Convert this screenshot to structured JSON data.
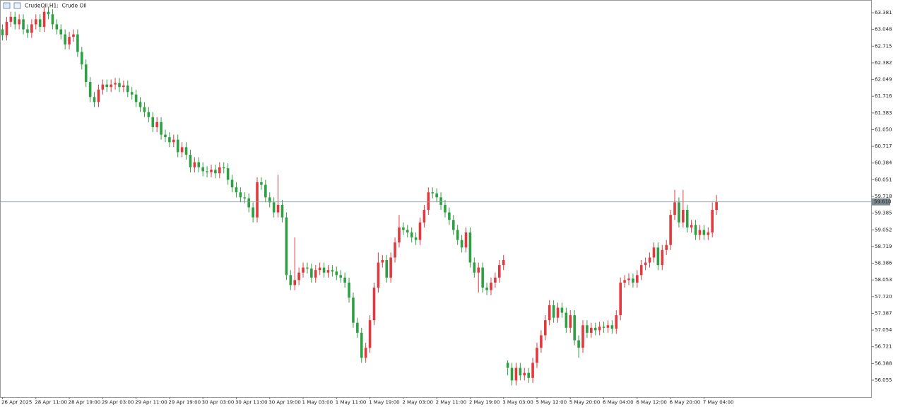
{
  "chart_data": {
    "type": "candlestick",
    "title": "CrudeOil,H1:  Crude Oil",
    "up_color": "#e0393e",
    "down_color": "#2ea043",
    "grid": false,
    "ylim": [
      55.717,
      63.635
    ],
    "yticks": [
      63.381,
      63.048,
      62.715,
      62.382,
      62.049,
      61.716,
      61.383,
      {
        "value": 61.05,
        "label": "61.050"
      },
      60.717,
      60.384,
      60.051,
      59.718,
      59.385,
      59.052,
      58.719,
      58.386,
      58.053,
      {
        "value": 57.72,
        "label": "57.720"
      },
      57.387,
      57.054,
      56.721,
      56.388,
      56.055
    ],
    "last_price": {
      "value": 59.61,
      "label": "59.610"
    },
    "categories": [
      "26 Apr 2025",
      null,
      null,
      null,
      null,
      null,
      null,
      null,
      "28 Apr 11:00",
      null,
      null,
      null,
      null,
      null,
      null,
      null,
      "28 Apr 19:00",
      null,
      null,
      null,
      null,
      null,
      null,
      null,
      "29 Apr 03:00",
      null,
      null,
      null,
      null,
      null,
      null,
      null,
      "29 Apr 11:00",
      null,
      null,
      null,
      null,
      null,
      null,
      null,
      "29 Apr 19:00",
      null,
      null,
      null,
      null,
      null,
      null,
      null,
      "30 Apr 03:00",
      null,
      null,
      null,
      null,
      null,
      null,
      null,
      "30 Apr 11:00",
      null,
      null,
      null,
      null,
      null,
      null,
      null,
      "30 Apr 19:00",
      null,
      null,
      null,
      null,
      null,
      null,
      null,
      "1 May 03:00",
      null,
      null,
      null,
      null,
      null,
      null,
      null,
      "1 May 11:00",
      null,
      null,
      null,
      null,
      null,
      null,
      null,
      "1 May 19:00",
      null,
      null,
      null,
      null,
      null,
      null,
      null,
      "2 May 03:00",
      null,
      null,
      null,
      null,
      null,
      null,
      null,
      "2 May 11:00",
      null,
      null,
      null,
      null,
      null,
      null,
      null,
      "2 May 19:00",
      null,
      null,
      null,
      null,
      null,
      null,
      null,
      "3 May 03:00",
      null,
      null,
      null,
      null,
      null,
      null,
      null,
      "5 May 12:00",
      null,
      null,
      null,
      null,
      null,
      null,
      null,
      "5 May 20:00",
      null,
      null,
      null,
      null,
      null,
      null,
      null,
      "6 May 04:00",
      null,
      null,
      null,
      null,
      null,
      null,
      null,
      "6 May 12:00",
      null,
      null,
      null,
      null,
      null,
      null,
      null,
      "6 May 20:00",
      null,
      null,
      null,
      null,
      null,
      null,
      null,
      "7 May 04:00",
      null,
      null,
      null
    ],
    "open": [
      63.05,
      62.93,
      63.2,
      63.3,
      63.15,
      63.25,
      63.05,
      62.98,
      63.15,
      63.25,
      63.1,
      63.4,
      63.35,
      63.15,
      63.05,
      62.95,
      62.75,
      62.9,
      62.95,
      62.6,
      62.35,
      62.0,
      61.7,
      61.6,
      61.85,
      61.95,
      61.9,
      61.95,
      61.98,
      61.9,
      61.93,
      61.8,
      61.75,
      61.6,
      61.5,
      61.4,
      61.3,
      61.1,
      61.2,
      60.95,
      60.9,
      60.8,
      60.85,
      60.6,
      60.7,
      60.55,
      60.3,
      60.4,
      60.3,
      60.22,
      60.2,
      60.25,
      60.18,
      60.3,
      60.28,
      60.05,
      59.9,
      59.8,
      59.7,
      59.68,
      59.5,
      59.3,
      60.0,
      59.95,
      59.7,
      59.6,
      59.4,
      59.55,
      59.3,
      58.15,
      57.95,
      58.05,
      58.2,
      58.3,
      58.28,
      58.1,
      58.25,
      58.3,
      58.2,
      58.25,
      58.22,
      58.15,
      58.1,
      58.0,
      57.7,
      57.2,
      57.0,
      56.5,
      56.7,
      57.25,
      57.9,
      58.4,
      58.45,
      58.1,
      58.5,
      58.8,
      59.1,
      59.05,
      59.0,
      58.9,
      58.85,
      59.2,
      59.45,
      59.8,
      59.78,
      59.7,
      59.55,
      59.4,
      59.25,
      59.05,
      58.85,
      58.7,
      59.0,
      58.4,
      58.2,
      58.3,
      57.9,
      57.85,
      58.0,
      58.1,
      58.35,
      56.4,
      56.3,
      56.05,
      56.3,
      56.15,
      56.2,
      56.1,
      56.4,
      56.7,
      56.95,
      57.25,
      57.55,
      57.3,
      57.5,
      57.4,
      57.1,
      57.35,
      56.85,
      56.7,
      57.15,
      57.0,
      57.1,
      57.05,
      57.12,
      57.1,
      57.15,
      57.08,
      57.35,
      58.0,
      58.05,
      58.08,
      58.0,
      58.15,
      58.35,
      58.4,
      58.5,
      58.7,
      58.35,
      58.65,
      58.75,
      59.35,
      59.6,
      59.2,
      59.45,
      59.1,
      59.15,
      58.95,
      59.05,
      58.95,
      59.0,
      59.45
    ],
    "high": [
      63.15,
      63.3,
      63.4,
      63.4,
      63.35,
      63.35,
      63.15,
      63.25,
      63.35,
      63.35,
      63.5,
      63.5,
      63.45,
      63.25,
      63.15,
      63.05,
      63.0,
      63.05,
      63.05,
      62.7,
      62.45,
      62.1,
      61.8,
      61.95,
      62.05,
      62.05,
      62.05,
      62.08,
      62.08,
      62.03,
      62.03,
      61.9,
      61.85,
      61.7,
      61.6,
      61.5,
      61.4,
      61.3,
      61.3,
      61.05,
      61.0,
      60.95,
      60.95,
      60.8,
      60.8,
      60.65,
      60.5,
      60.5,
      60.4,
      60.32,
      60.35,
      60.35,
      60.4,
      60.4,
      60.38,
      60.15,
      60.0,
      59.9,
      59.8,
      59.78,
      59.6,
      60.1,
      60.1,
      60.05,
      59.8,
      59.7,
      60.15,
      59.65,
      59.4,
      58.25,
      58.9,
      58.3,
      58.4,
      58.4,
      58.38,
      58.35,
      58.4,
      58.4,
      58.35,
      58.35,
      58.32,
      58.25,
      58.2,
      58.1,
      57.8,
      57.3,
      57.1,
      56.8,
      57.35,
      58.0,
      58.6,
      58.55,
      58.55,
      58.6,
      58.9,
      59.35,
      59.2,
      59.15,
      59.1,
      59.0,
      59.3,
      59.55,
      59.9,
      59.9,
      59.88,
      59.8,
      59.65,
      59.5,
      59.35,
      59.15,
      58.95,
      59.1,
      59.1,
      58.5,
      58.4,
      58.4,
      58.0,
      58.1,
      58.2,
      58.45,
      58.55,
      56.45,
      56.4,
      56.4,
      56.4,
      56.3,
      56.3,
      56.5,
      56.8,
      57.05,
      57.35,
      57.65,
      57.65,
      57.6,
      57.6,
      57.5,
      57.45,
      57.45,
      56.95,
      57.25,
      57.25,
      57.2,
      57.2,
      57.22,
      57.22,
      57.25,
      57.25,
      57.45,
      58.1,
      58.15,
      58.18,
      58.18,
      58.25,
      58.45,
      58.5,
      58.6,
      58.8,
      58.8,
      58.75,
      58.85,
      59.45,
      59.85,
      59.7,
      59.85,
      59.55,
      59.25,
      59.25,
      59.15,
      59.15,
      59.1,
      59.6,
      59.75
    ],
    "low": [
      62.83,
      62.83,
      63.1,
      63.05,
      63.05,
      62.95,
      62.88,
      62.88,
      63.05,
      63.0,
      63.0,
      63.25,
      63.05,
      62.95,
      62.85,
      62.65,
      62.65,
      62.8,
      62.5,
      62.25,
      61.9,
      61.6,
      61.5,
      61.5,
      61.75,
      61.8,
      61.8,
      61.85,
      61.8,
      61.8,
      61.7,
      61.65,
      61.5,
      61.4,
      61.3,
      61.2,
      61.0,
      61.0,
      60.85,
      60.8,
      60.7,
      60.7,
      60.5,
      60.5,
      60.45,
      60.2,
      60.2,
      60.2,
      60.12,
      60.1,
      60.1,
      60.08,
      60.08,
      60.18,
      59.95,
      59.8,
      59.7,
      59.6,
      59.58,
      59.4,
      59.2,
      59.2,
      59.85,
      59.6,
      59.5,
      59.3,
      59.3,
      59.2,
      58.05,
      57.85,
      57.85,
      57.95,
      58.1,
      58.18,
      58.0,
      58.0,
      58.15,
      58.1,
      58.1,
      58.12,
      58.05,
      58.0,
      57.9,
      57.6,
      57.1,
      56.9,
      56.4,
      56.4,
      56.6,
      57.15,
      57.8,
      58.3,
      58.0,
      58.0,
      58.4,
      58.7,
      58.95,
      58.9,
      58.8,
      58.75,
      58.75,
      59.1,
      59.35,
      59.68,
      59.6,
      59.45,
      59.3,
      59.15,
      58.95,
      58.75,
      58.6,
      58.6,
      58.3,
      58.1,
      57.8,
      57.8,
      57.75,
      57.75,
      57.9,
      58.0,
      58.25,
      56.15,
      55.95,
      55.95,
      56.05,
      56.05,
      56.0,
      56.0,
      56.3,
      56.6,
      56.85,
      57.15,
      57.2,
      57.2,
      57.3,
      57.0,
      57.0,
      56.75,
      56.5,
      56.6,
      56.9,
      56.9,
      56.95,
      56.95,
      57.0,
      57.0,
      56.98,
      56.98,
      57.25,
      57.9,
      57.95,
      57.9,
      57.9,
      58.05,
      58.25,
      58.3,
      58.4,
      58.25,
      58.25,
      58.55,
      58.65,
      59.25,
      59.1,
      59.1,
      59.0,
      59.0,
      58.85,
      58.85,
      58.85,
      58.85,
      58.9,
      59.35
    ],
    "close": [
      62.93,
      63.2,
      63.3,
      63.15,
      63.25,
      63.05,
      62.98,
      63.15,
      63.25,
      63.1,
      63.4,
      63.35,
      63.15,
      63.05,
      62.95,
      62.75,
      62.9,
      62.95,
      62.6,
      62.35,
      62.0,
      61.7,
      61.6,
      61.85,
      61.95,
      61.9,
      61.95,
      61.98,
      61.9,
      61.93,
      61.8,
      61.75,
      61.6,
      61.5,
      61.4,
      61.3,
      61.1,
      61.2,
      60.95,
      60.9,
      60.8,
      60.85,
      60.6,
      60.7,
      60.55,
      60.3,
      60.4,
      60.3,
      60.22,
      60.2,
      60.25,
      60.18,
      60.3,
      60.28,
      60.05,
      59.9,
      59.8,
      59.7,
      59.68,
      59.5,
      59.3,
      60.0,
      59.95,
      59.7,
      59.6,
      59.4,
      59.55,
      59.3,
      58.15,
      57.95,
      58.05,
      58.2,
      58.3,
      58.28,
      58.1,
      58.25,
      58.3,
      58.2,
      58.25,
      58.22,
      58.15,
      58.1,
      58.0,
      57.7,
      57.2,
      57.0,
      56.5,
      56.7,
      57.25,
      57.9,
      58.4,
      58.45,
      58.1,
      58.5,
      58.8,
      59.1,
      59.05,
      59.0,
      58.9,
      58.85,
      59.2,
      59.45,
      59.8,
      59.78,
      59.7,
      59.55,
      59.4,
      59.25,
      59.05,
      58.85,
      58.7,
      59.0,
      58.4,
      58.2,
      58.3,
      57.9,
      57.85,
      58.0,
      58.1,
      58.35,
      58.45,
      56.3,
      56.05,
      56.3,
      56.15,
      56.2,
      56.1,
      56.4,
      56.7,
      56.95,
      57.25,
      57.55,
      57.3,
      57.5,
      57.4,
      57.1,
      57.35,
      56.85,
      56.7,
      57.15,
      57.0,
      57.1,
      57.05,
      57.12,
      57.1,
      57.15,
      57.08,
      57.35,
      58.0,
      58.05,
      58.08,
      58.0,
      58.15,
      58.35,
      58.4,
      58.5,
      58.7,
      58.35,
      58.65,
      58.75,
      59.35,
      59.6,
      59.2,
      59.45,
      59.1,
      59.15,
      58.95,
      59.05,
      58.95,
      59.0,
      59.45,
      59.61
    ]
  }
}
